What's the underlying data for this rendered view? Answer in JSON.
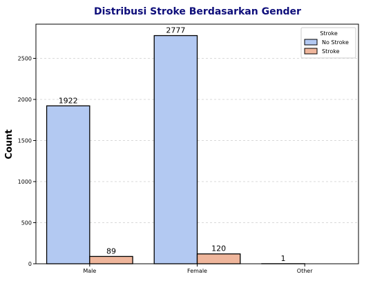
{
  "chart_data": {
    "type": "bar",
    "title": "Distribusi Stroke Berdasarkan Gender",
    "xlabel": "",
    "ylabel": "Count",
    "categories": [
      "Male",
      "Female",
      "Other"
    ],
    "series": [
      {
        "name": "No Stroke",
        "values": [
          1922,
          2777,
          1
        ],
        "color": "#b3c9f2"
      },
      {
        "name": "Stroke",
        "values": [
          89,
          120,
          0
        ],
        "color": "#efb69c"
      }
    ],
    "bar_labels": [
      [
        "1922",
        "2777",
        "1"
      ],
      [
        "89",
        "120",
        ""
      ]
    ],
    "ylim": [
      0,
      2916
    ],
    "yticks": [
      0,
      500,
      1000,
      1500,
      2000,
      2500
    ],
    "grid": true,
    "legend": {
      "title": "Stroke",
      "placement": "top-right"
    },
    "colors": {
      "title": "#0d0d7a",
      "edge": "#000000",
      "grid": "#cccccc"
    }
  }
}
